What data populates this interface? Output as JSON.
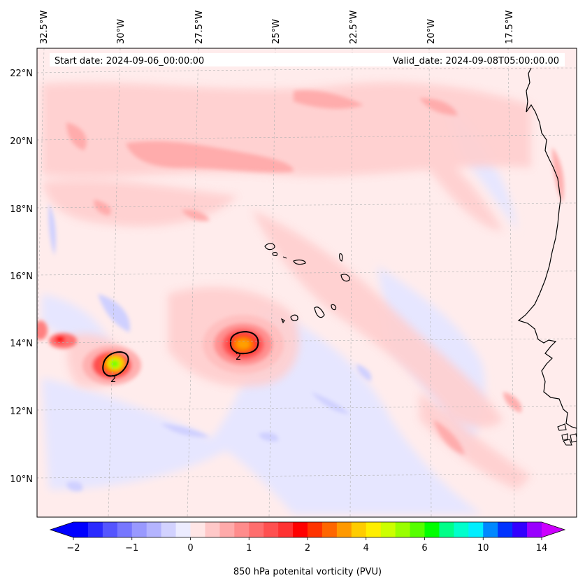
{
  "header": {
    "start_date": "Start date: 2024-09-06_00:00:00",
    "valid_date": "Valid_date: 2024-09-08T05:00:00.00"
  },
  "axes": {
    "lon_labels": [
      "32.5°W",
      "30°W",
      "27.5°W",
      "25°W",
      "22.5°W",
      "20°W",
      "17.5°W"
    ],
    "lat_labels": [
      "22°N",
      "20°N",
      "18°N",
      "16°N",
      "14°N",
      "12°N",
      "10°N"
    ]
  },
  "contour_labels": [
    "2",
    "2"
  ],
  "colorbar": {
    "label": "850 hPa potenital vorticity (PVU)",
    "tick_labels": [
      "−2",
      "−1",
      "0",
      "1",
      "2",
      "4",
      "6",
      "10",
      "14"
    ],
    "colors": [
      "#0000ff",
      "#2a2aff",
      "#5555ff",
      "#7777ff",
      "#9999ff",
      "#b4b4ff",
      "#d2d2ff",
      "#ececff",
      "#ffe6e6",
      "#ffc8c8",
      "#ffaaaa",
      "#ff8c8c",
      "#ff6e6e",
      "#ff5050",
      "#ff3232",
      "#ff0000",
      "#ff3300",
      "#ff6600",
      "#ff9900",
      "#ffcc00",
      "#ffee00",
      "#ccff00",
      "#99ff00",
      "#55ff00",
      "#00ff00",
      "#00ff88",
      "#00ffcc",
      "#00eeff",
      "#0088ff",
      "#0033ff",
      "#3300ff",
      "#9900ff"
    ],
    "extend_low": "#0000ff",
    "extend_high": "#cc00ff"
  }
}
